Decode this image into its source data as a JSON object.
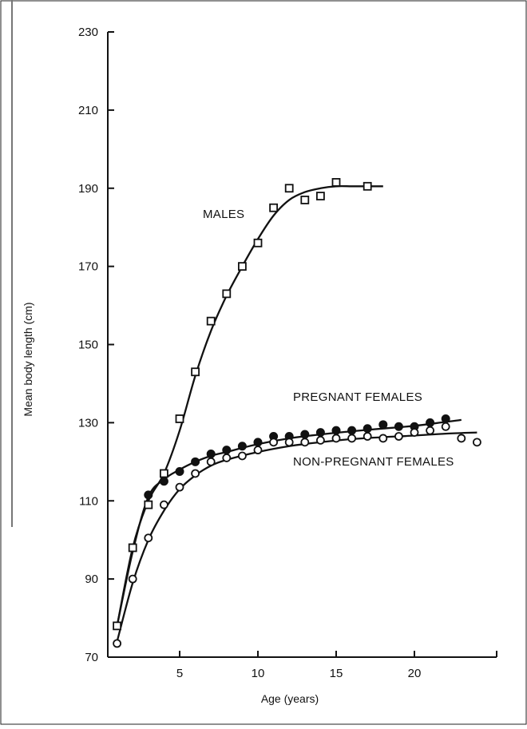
{
  "chart_data": {
    "type": "scatter",
    "title": "",
    "xlabel": "Age (years)",
    "ylabel": "Mean body length (cm)",
    "xlim": [
      0.5,
      25
    ],
    "ylim": [
      70,
      230
    ],
    "xticks": [
      5,
      10,
      15,
      20
    ],
    "yticks": [
      70,
      90,
      110,
      130,
      150,
      170,
      190,
      210,
      230
    ],
    "grid": false,
    "legend": "none",
    "series": [
      {
        "name": "MALES",
        "marker": "open-square",
        "x": [
          1,
          2,
          3,
          4,
          5,
          6,
          7,
          8,
          9,
          10,
          11,
          12,
          13,
          14,
          15,
          17
        ],
        "y": [
          78,
          98,
          109,
          117,
          131,
          143,
          156,
          163,
          170,
          176,
          185,
          190,
          187,
          188,
          191.5,
          190.5
        ],
        "fit": {
          "x": [
            1,
            2,
            3,
            4,
            5,
            6,
            7,
            8,
            9,
            10,
            11,
            12,
            13,
            14,
            15,
            16,
            17,
            18
          ],
          "y": [
            78,
            98,
            110,
            117,
            128,
            142,
            153.5,
            162.5,
            170,
            177,
            183,
            187,
            189,
            190,
            190.5,
            190.5,
            190.5,
            190.5
          ]
        }
      },
      {
        "name": "PREGNANT FEMALES",
        "marker": "filled-circle",
        "x": [
          3,
          4,
          5,
          6,
          7,
          8,
          9,
          10,
          11,
          12,
          13,
          14,
          15,
          16,
          17,
          18,
          19,
          20,
          21,
          22
        ],
        "y": [
          111.5,
          115,
          117.5,
          120,
          122,
          123,
          124,
          125,
          126.5,
          126.5,
          127,
          127.5,
          128,
          128,
          128.5,
          129.5,
          129,
          129,
          130,
          131
        ],
        "fit": {
          "x": [
            1,
            2,
            3,
            4,
            5,
            6,
            7,
            8,
            10,
            12,
            14,
            16,
            18,
            20,
            22,
            23
          ],
          "y": [
            78,
            97,
            111,
            115.5,
            118,
            120,
            121.5,
            122.5,
            124.5,
            126,
            127,
            127.8,
            128.5,
            129.2,
            130.2,
            130.7
          ]
        }
      },
      {
        "name": "NON-PREGNANT FEMALES",
        "marker": "open-circle",
        "x": [
          1,
          2,
          3,
          4,
          5,
          6,
          7,
          8,
          9,
          10,
          11,
          12,
          13,
          14,
          15,
          16,
          17,
          18,
          19,
          20,
          21,
          22,
          23,
          24
        ],
        "y": [
          73.5,
          90,
          100.5,
          109,
          113.5,
          117,
          120,
          121,
          121.5,
          123,
          125,
          125,
          125,
          125.5,
          126,
          126,
          126.5,
          126,
          126.5,
          127.5,
          128,
          129,
          126,
          125
        ],
        "fit": {
          "x": [
            1,
            2,
            3,
            4,
            5,
            6,
            7,
            8,
            10,
            12,
            14,
            16,
            18,
            20,
            22,
            24
          ],
          "y": [
            74,
            89,
            100,
            107.5,
            113,
            116.5,
            119,
            120.5,
            122.5,
            124,
            125,
            125.8,
            126.3,
            126.7,
            127.2,
            127.5
          ]
        }
      }
    ]
  }
}
